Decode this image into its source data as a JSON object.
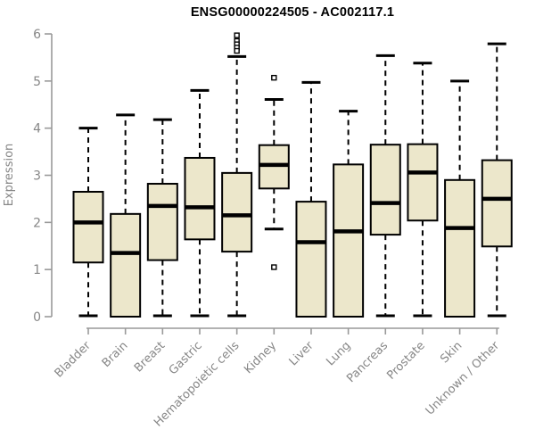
{
  "title": "ENSG00000224505 - AC002117.1",
  "colors": {
    "background": "#ffffff",
    "box_fill": "#ece7cb",
    "box_stroke": "#000000",
    "median": "#000000",
    "whisker": "#000000",
    "outlier_stroke": "#000000",
    "outlier_fill": "#ffffff",
    "axis_line": "#999999",
    "axis_text": "#868686",
    "title_color": "#000000"
  },
  "chart_data": {
    "type": "boxplot",
    "title": "ENSG00000224505 - AC002117.1",
    "xlabel": "",
    "ylabel": "Expression",
    "ylim": [
      0,
      6
    ],
    "yticks": [
      0,
      1,
      2,
      3,
      4,
      5,
      6
    ],
    "grid": false,
    "legend": "none",
    "categories": [
      "Bladder",
      "Brain",
      "Breast",
      "Gastric",
      "Hematopoietic cells",
      "Kidney",
      "Liver",
      "Lung",
      "Pancreas",
      "Prostate",
      "Skin",
      "Unknown / Other"
    ],
    "series": [
      {
        "name": "Bladder",
        "low": 0.02,
        "q1": 1.15,
        "median": 2.0,
        "q3": 2.65,
        "high": 4.0,
        "outliers": []
      },
      {
        "name": "Brain",
        "low": 0.0,
        "q1": 0.0,
        "median": 1.35,
        "q3": 2.18,
        "high": 4.28,
        "outliers": []
      },
      {
        "name": "Breast",
        "low": 0.02,
        "q1": 1.2,
        "median": 2.35,
        "q3": 2.82,
        "high": 4.18,
        "outliers": []
      },
      {
        "name": "Gastric",
        "low": 0.02,
        "q1": 1.64,
        "median": 2.32,
        "q3": 3.37,
        "high": 4.8,
        "outliers": []
      },
      {
        "name": "Hematopoietic cells",
        "low": 0.02,
        "q1": 1.38,
        "median": 2.15,
        "q3": 3.05,
        "high": 5.52,
        "outliers": [
          5.97,
          5.85,
          5.78,
          5.71,
          5.64
        ]
      },
      {
        "name": "Kidney",
        "low": 1.86,
        "q1": 2.72,
        "median": 3.22,
        "q3": 3.64,
        "high": 4.61,
        "outliers": [
          5.07,
          1.05
        ]
      },
      {
        "name": "Liver",
        "low": 0.0,
        "q1": 0.0,
        "median": 1.58,
        "q3": 2.44,
        "high": 4.97,
        "outliers": []
      },
      {
        "name": "Lung",
        "low": 0.0,
        "q1": 0.0,
        "median": 1.81,
        "q3": 3.23,
        "high": 4.36,
        "outliers": []
      },
      {
        "name": "Pancreas",
        "low": 0.02,
        "q1": 1.74,
        "median": 2.41,
        "q3": 3.65,
        "high": 5.54,
        "outliers": []
      },
      {
        "name": "Prostate",
        "low": 0.02,
        "q1": 2.04,
        "median": 3.06,
        "q3": 3.66,
        "high": 5.38,
        "outliers": []
      },
      {
        "name": "Skin",
        "low": 0.0,
        "q1": 0.0,
        "median": 1.88,
        "q3": 2.9,
        "high": 5.0,
        "outliers": []
      },
      {
        "name": "Unknown / Other",
        "low": 0.02,
        "q1": 1.49,
        "median": 2.5,
        "q3": 3.32,
        "high": 5.79,
        "outliers": []
      }
    ]
  }
}
